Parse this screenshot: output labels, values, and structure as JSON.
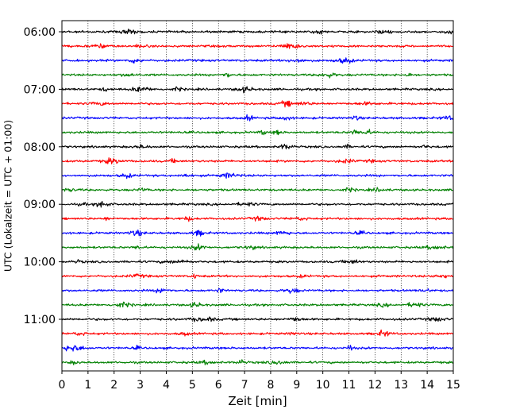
{
  "chart_data": {
    "type": "line",
    "title": "",
    "xlabel": "Zeit  [min]",
    "ylabel": "UTC (Lokalzeit = UTC + 01:00)",
    "xlim": [
      0,
      15
    ],
    "xticks": [
      0,
      1,
      2,
      3,
      4,
      5,
      6,
      7,
      8,
      9,
      10,
      11,
      12,
      13,
      14,
      15
    ],
    "y_tick_labels": [
      "06:00",
      "07:00",
      "08:00",
      "09:00",
      "10:00",
      "11:00"
    ],
    "trace_interval_min": 15,
    "start_time": "06:00",
    "end_time": "11:45",
    "grid": "vertical dotted",
    "colors": [
      "#000000",
      "#ff0000",
      "#0000ff",
      "#008000"
    ],
    "traces": [
      {
        "label": "06:00"
      },
      {
        "label": "06:15"
      },
      {
        "label": "06:30"
      },
      {
        "label": "06:45"
      },
      {
        "label": "07:00"
      },
      {
        "label": "07:15"
      },
      {
        "label": "07:30"
      },
      {
        "label": "07:45"
      },
      {
        "label": "08:00"
      },
      {
        "label": "08:15"
      },
      {
        "label": "08:30"
      },
      {
        "label": "08:45"
      },
      {
        "label": "09:00"
      },
      {
        "label": "09:15"
      },
      {
        "label": "09:30"
      },
      {
        "label": "09:45"
      },
      {
        "label": "10:00"
      },
      {
        "label": "10:15"
      },
      {
        "label": "10:30"
      },
      {
        "label": "10:45"
      },
      {
        "label": "11:00"
      },
      {
        "label": "11:15"
      },
      {
        "label": "11:30"
      },
      {
        "label": "11:45"
      }
    ]
  }
}
